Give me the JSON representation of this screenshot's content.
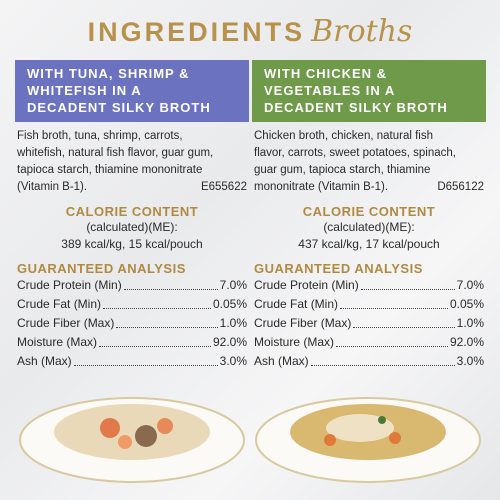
{
  "header": {
    "title": "INGREDIENTS",
    "subtitle": "Broths"
  },
  "columns": [
    {
      "heading": [
        "WITH TUNA, SHRIMP &",
        "WHITEFISH IN A",
        "DECADENT SILKY BROTH"
      ],
      "ingredients": [
        "Fish broth, tuna, shrimp, carrots,",
        "whitefish, natural fish flavor, guar gum,",
        "tapioca starch, thiamine mononitrate",
        "(Vitamin B-1)."
      ],
      "code": "E655622",
      "calorie_title": "CALORIE CONTENT",
      "calorie_note": "(calculated)(ME):",
      "calorie_value": "389 kcal/kg, 15 kcal/pouch",
      "analysis_title": "GUARANTEED ANALYSIS",
      "analysis": [
        {
          "label": "Crude Protein (Min)",
          "value": "7.0%"
        },
        {
          "label": "Crude Fat (Min)",
          "value": "0.05%"
        },
        {
          "label": "Crude Fiber (Max)",
          "value": "1.0%"
        },
        {
          "label": "Moisture (Max)",
          "value": "92.0%"
        },
        {
          "label": "Ash (Max)",
          "value": "3.0%"
        }
      ]
    },
    {
      "heading": [
        "WITH CHICKEN &",
        "VEGETABLES IN A",
        "DECADENT SILKY BROTH"
      ],
      "ingredients": [
        "Chicken broth, chicken, natural fish",
        "flavor, carrots, sweet potatoes, spinach,",
        "guar gum, tapioca starch, thiamine",
        "mononitrate (Vitamin B-1)."
      ],
      "code": "D656122",
      "calorie_title": "CALORIE CONTENT",
      "calorie_note": "(calculated)(ME):",
      "calorie_value": "437 kcal/kg, 17 kcal/pouch",
      "analysis_title": "GUARANTEED ANALYSIS",
      "analysis": [
        {
          "label": "Crude Protein (Min)",
          "value": "7.0%"
        },
        {
          "label": "Crude Fat (Min)",
          "value": "0.05%"
        },
        {
          "label": "Crude Fiber (Max)",
          "value": "1.0%"
        },
        {
          "label": "Moisture (Max)",
          "value": "92.0%"
        },
        {
          "label": "Ash (Max)",
          "value": "3.0%"
        }
      ]
    }
  ]
}
